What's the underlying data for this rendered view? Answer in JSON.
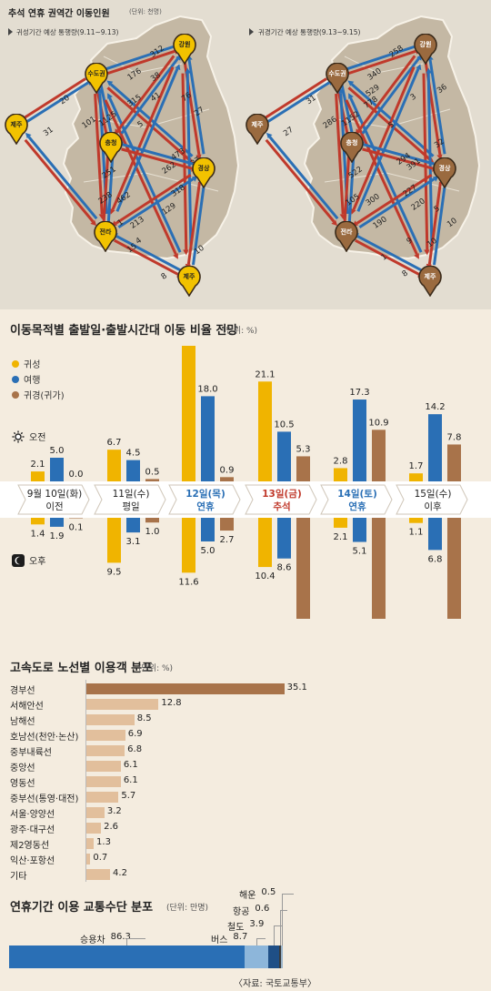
{
  "maps": {
    "title": "추석 연휴 권역간 이동인원",
    "unit": "(단위: 천명)",
    "left_caption": "귀성기간 예상 통행량(9.11~9.13)",
    "right_caption": "귀경기간 예상 통행량(9.13~9.15)",
    "regions": [
      "수도권",
      "강원",
      "제주",
      "충청",
      "경상",
      "전라",
      "제주"
    ],
    "left_numbers": [
      "312",
      "176",
      "38",
      "20",
      "31",
      "101",
      "1125",
      "315",
      "41",
      "76",
      "27",
      "5",
      "473",
      "262",
      "37",
      "251",
      "462",
      "238",
      "213",
      "318",
      "129",
      "15",
      "8",
      "4",
      "10",
      "1"
    ],
    "right_numbers": [
      "258",
      "340",
      "31",
      "27",
      "286",
      "1152",
      "778",
      "529",
      "3",
      "36",
      "5",
      "522",
      "294",
      "391",
      "32",
      "300",
      "105",
      "190",
      "227",
      "220",
      "5",
      "10",
      "1",
      "9",
      "8",
      "10"
    ],
    "colors": {
      "outbound": "#c0392b",
      "return": "#2a6fb5",
      "region_go": "#f2c200",
      "region_back": "#9a6a3f"
    }
  },
  "section1": {
    "title": "이동목적별 출발일·출발시간대 이동 비율 전망",
    "unit": "(단위: %)",
    "legend": [
      "귀성",
      "여행",
      "귀경(귀가)"
    ],
    "am_label": "오전",
    "pm_label": "오후"
  },
  "section2": {
    "title": "고속도로 노선별 이용객 분포",
    "unit": "(단위: %)"
  },
  "section3": {
    "title": "연휴기간 이용 교통수단 분포",
    "unit": "(단위: 만명)",
    "source": "〈자료: 국토교통부〉"
  },
  "chart_data": [
    {
      "type": "bar",
      "categories": [
        {
          "date": "9월 10일(화)",
          "sub": "이전",
          "color": "#222222"
        },
        {
          "date": "11일(수)",
          "sub": "평일",
          "color": "#222222"
        },
        {
          "date": "12일(목)",
          "sub": "연휴",
          "color": "#2a6fb5"
        },
        {
          "date": "13일(금)",
          "sub": "추석",
          "color": "#c0392b"
        },
        {
          "date": "14일(토)",
          "sub": "연휴",
          "color": "#2a6fb5"
        },
        {
          "date": "15일(수)",
          "sub": "이후",
          "color": "#222222"
        }
      ],
      "series": [
        {
          "name": "귀성",
          "color": "#f0b400",
          "am": [
            2.1,
            6.7,
            29.5,
            21.1,
            2.8,
            1.7
          ],
          "pm": [
            1.4,
            9.5,
            11.6,
            10.4,
            2.1,
            1.1
          ]
        },
        {
          "name": "여행",
          "color": "#2a6fb5",
          "am": [
            5.0,
            4.5,
            18.0,
            10.5,
            17.3,
            14.2
          ],
          "pm": [
            1.9,
            3.1,
            5.0,
            8.6,
            5.1,
            6.8
          ]
        },
        {
          "name": "귀경(귀가)",
          "color": "#a8734a",
          "am": [
            0.0,
            0.5,
            0.9,
            5.3,
            10.9,
            7.8
          ],
          "pm": [
            0.1,
            1.0,
            2.7,
            23.6,
            25.4,
            21.8
          ]
        }
      ],
      "am_labels": [
        [
          "2.1",
          "5.0",
          "0.0"
        ],
        [
          "6.7",
          "4.5",
          "0.5"
        ],
        [
          "29.5",
          "18.0",
          "0.9"
        ],
        [
          "21.1",
          "10.5",
          "5.3"
        ],
        [
          "2.8",
          "17.3",
          "10.9"
        ],
        [
          "1.7",
          "14.2",
          "7.8"
        ]
      ],
      "pm_labels": [
        [
          "1.4",
          "1.9",
          "0.1"
        ],
        [
          "9.5",
          "3.1",
          "1.0"
        ],
        [
          "11.6",
          "5.0",
          "2.7"
        ],
        [
          "10.4",
          "8.6",
          "23.6"
        ],
        [
          "2.1",
          "5.1",
          "25.4"
        ],
        [
          "1.1",
          "6.8",
          "21.8"
        ]
      ]
    },
    {
      "type": "bar",
      "orientation": "horizontal",
      "categories": [
        "경부선",
        "서해안선",
        "남해선",
        "호남선(천안·논산)",
        "중부내륙선",
        "중앙선",
        "영동선",
        "중부선(통영·대전)",
        "서울·양양선",
        "광주·대구선",
        "제2영동선",
        "익산·포항선",
        "기타"
      ],
      "values": [
        35.1,
        12.8,
        8.5,
        6.9,
        6.8,
        6.1,
        6.1,
        5.7,
        3.2,
        2.6,
        1.3,
        0.7,
        4.2
      ],
      "labels": [
        "35.1",
        "12.8",
        "8.5",
        "6.9",
        "6.8",
        "6.1",
        "6.1",
        "5.7",
        "3.2",
        "2.6",
        "1.3",
        "0.7",
        "4.2"
      ],
      "colors": {
        "main": "#a8734a",
        "other": "#e2bf9c"
      }
    },
    {
      "type": "bar",
      "orientation": "stacked-horizontal",
      "categories": [
        "승용차",
        "버스",
        "철도",
        "항공",
        "해운"
      ],
      "values": [
        86.3,
        8.7,
        3.9,
        0.6,
        0.5
      ],
      "labels": [
        "86.3",
        "8.7",
        "3.9",
        "0.6",
        "0.5"
      ],
      "colors": [
        "#2a6fb5",
        "#8db6da",
        "#1f4f86",
        "#3a3a3a",
        "#9ab3c8"
      ]
    }
  ]
}
